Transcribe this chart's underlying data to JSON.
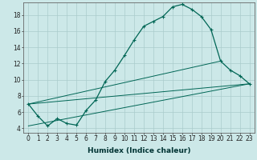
{
  "xlabel": "Humidex (Indice chaleur)",
  "bg_color": "#cce8e8",
  "line_color": "#006655",
  "grid_color": "#b0d8d8",
  "xlim": [
    -0.5,
    23.5
  ],
  "ylim": [
    3.5,
    19.5
  ],
  "yticks": [
    4,
    6,
    8,
    10,
    12,
    14,
    16,
    18
  ],
  "xticks": [
    0,
    1,
    2,
    3,
    4,
    5,
    6,
    7,
    8,
    9,
    10,
    11,
    12,
    13,
    14,
    15,
    16,
    17,
    18,
    19,
    20,
    21,
    22,
    23
  ],
  "main_x": [
    0,
    1,
    2,
    3,
    4,
    5,
    6,
    7,
    8,
    9,
    10,
    11,
    12,
    13,
    14,
    15,
    16,
    17,
    18,
    19,
    20,
    21,
    22,
    23
  ],
  "main_y": [
    7.0,
    5.5,
    4.3,
    5.2,
    4.6,
    4.4,
    6.2,
    7.5,
    9.8,
    11.2,
    13.0,
    14.9,
    16.6,
    17.2,
    17.8,
    19.0,
    19.3,
    18.7,
    17.8,
    16.2,
    12.3,
    11.2,
    10.5,
    9.5
  ],
  "line1_x": [
    0,
    20
  ],
  "line1_y": [
    7.0,
    12.3
  ],
  "line2_x": [
    0,
    23
  ],
  "line2_y": [
    4.3,
    9.5
  ],
  "line3_x": [
    0,
    23
  ],
  "line3_y": [
    7.0,
    9.5
  ],
  "xlabel_fontsize": 6.5,
  "tick_fontsize": 5.5
}
